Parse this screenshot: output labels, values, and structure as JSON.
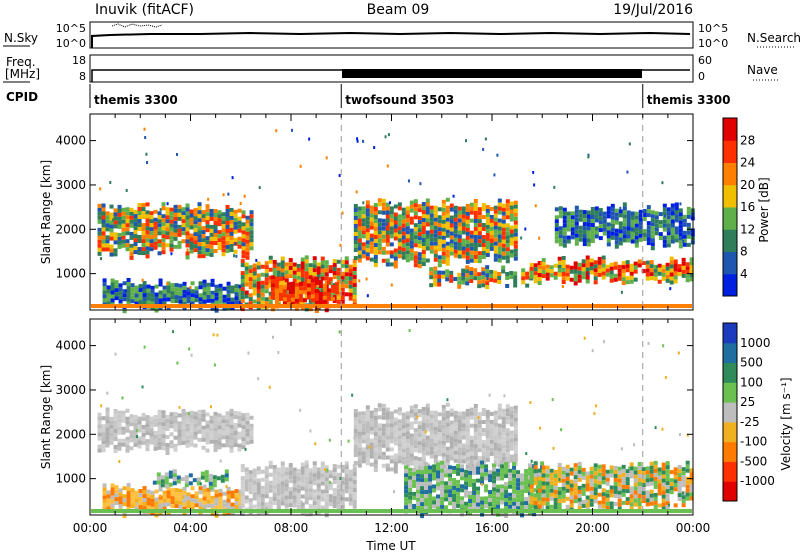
{
  "header": {
    "station": "Inuvik (fitACF)",
    "beam": "Beam 09",
    "date": "19/Jul/2016"
  },
  "status_panels": {
    "nsky_label": "N.Sky",
    "nsky_ticks": [
      "10^5",
      "10^0"
    ],
    "nsearch_label": "N.Search",
    "nsearch_ticks": [
      "10^5",
      "10^0"
    ],
    "freq_label_1": "Freq.",
    "freq_label_2": "[MHz]",
    "freq_ticks": [
      "18",
      "8"
    ],
    "nave_label": "Nave",
    "nave_ticks": [
      "60",
      "0"
    ],
    "cpid_label": "CPID",
    "cpid_segments": [
      {
        "label": "themis 3300",
        "start_hour": 0,
        "end_hour": 10
      },
      {
        "label": "twofsound 3503",
        "start_hour": 10,
        "end_hour": 22
      },
      {
        "label": "themis 3300",
        "start_hour": 22,
        "end_hour": 24
      }
    ]
  },
  "chart_data": [
    {
      "type": "heatmap",
      "title": "",
      "xlabel": "",
      "ylabel": "Slant Range [km]",
      "xlim": [
        0,
        24
      ],
      "ylim": [
        180,
        4600
      ],
      "y_ticks": [
        1000,
        2000,
        3000,
        4000
      ],
      "y_tick_labels": [
        "1000",
        "2000",
        "3000",
        "4000"
      ],
      "colorbar": {
        "label": "Power [dB]",
        "ticks": [
          "4",
          "8",
          "12",
          "16",
          "20",
          "24",
          "28"
        ],
        "colors": [
          "#0020e0",
          "#1e56b0",
          "#2f7d5a",
          "#5fb04a",
          "#f0c000",
          "#ff8000",
          "#ff3000",
          "#e00000"
        ]
      },
      "regions": [
        {
          "start_hour": 0.3,
          "end_hour": 6.5,
          "min_km": 1500,
          "max_km": 2500,
          "level": "mid"
        },
        {
          "start_hour": 0.5,
          "end_hour": 6.0,
          "min_km": 300,
          "max_km": 800,
          "level": "low"
        },
        {
          "start_hour": 6.0,
          "end_hour": 10.5,
          "min_km": 300,
          "max_km": 1300,
          "level": "high"
        },
        {
          "start_hour": 7.2,
          "end_hour": 9.8,
          "min_km": 300,
          "max_km": 850,
          "level": "max"
        },
        {
          "start_hour": 10.5,
          "end_hour": 17.0,
          "min_km": 1300,
          "max_km": 2600,
          "level": "mid"
        },
        {
          "start_hour": 13.5,
          "end_hour": 17.5,
          "min_km": 800,
          "max_km": 1100,
          "level": "mid"
        },
        {
          "start_hour": 17.5,
          "end_hour": 24.0,
          "min_km": 900,
          "max_km": 1300,
          "level": "high"
        },
        {
          "start_hour": 18.5,
          "end_hour": 24.0,
          "min_km": 1700,
          "max_km": 2500,
          "level": "low"
        }
      ]
    },
    {
      "type": "heatmap",
      "title": "",
      "xlabel": "Time UT",
      "ylabel": "Slant Range [km]",
      "xlim": [
        0,
        24
      ],
      "ylim": [
        180,
        4600
      ],
      "y_ticks": [
        1000,
        2000,
        3000,
        4000
      ],
      "y_tick_labels": [
        "1000",
        "2000",
        "3000",
        "4000"
      ],
      "x_ticks": [
        0,
        4,
        8,
        12,
        16,
        20,
        24
      ],
      "x_tick_labels": [
        "00:00",
        "04:00",
        "08:00",
        "12:00",
        "16:00",
        "20:00",
        "00:00"
      ],
      "colorbar": {
        "label": "Velocity [m s⁻¹]",
        "ticks": [
          "1000",
          "500",
          "100",
          "25",
          "-25",
          "-100",
          "-500",
          "-1000"
        ],
        "colors": [
          "#1c3cc0",
          "#1e6ea0",
          "#2f8c5a",
          "#6ac050",
          "#bdbdbd",
          "#f0b020",
          "#ff7a00",
          "#ff3000",
          "#e00000"
        ]
      },
      "regions": [
        {
          "start_hour": 0.3,
          "end_hour": 6.5,
          "min_km": 1700,
          "max_km": 2500,
          "level": "gray"
        },
        {
          "start_hour": 0.5,
          "end_hour": 6.0,
          "min_km": 300,
          "max_km": 800,
          "level": "negative"
        },
        {
          "start_hour": 2.5,
          "end_hour": 5.5,
          "min_km": 900,
          "max_km": 1100,
          "level": "positive"
        },
        {
          "start_hour": 6.0,
          "end_hour": 10.5,
          "min_km": 300,
          "max_km": 1300,
          "level": "gray"
        },
        {
          "start_hour": 10.5,
          "end_hour": 17.0,
          "min_km": 1300,
          "max_km": 2600,
          "level": "gray"
        },
        {
          "start_hour": 12.5,
          "end_hour": 18.0,
          "min_km": 300,
          "max_km": 1300,
          "level": "positive"
        },
        {
          "start_hour": 17.5,
          "end_hour": 24.0,
          "min_km": 400,
          "max_km": 1300,
          "level": "mixed"
        }
      ]
    }
  ]
}
